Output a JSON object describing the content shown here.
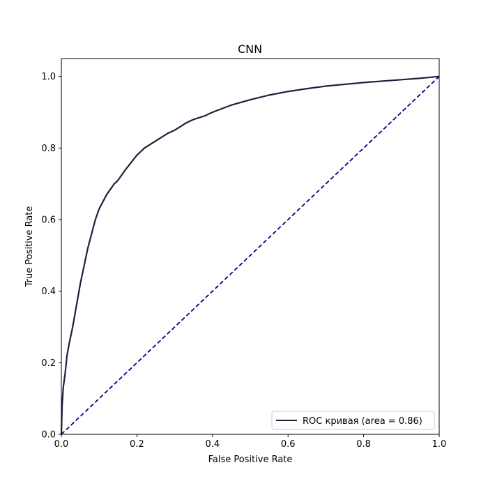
{
  "chart_data": {
    "type": "line",
    "title": "CNN",
    "xlabel": "False Positive Rate",
    "ylabel": "True Positive Rate",
    "xlim": [
      0.0,
      1.0
    ],
    "ylim": [
      0.0,
      1.05
    ],
    "xticks": [
      0.0,
      0.2,
      0.4,
      0.6,
      0.8,
      1.0
    ],
    "yticks": [
      0.0,
      0.2,
      0.4,
      0.6,
      0.8,
      1.0
    ],
    "xtick_labels": [
      "0.0",
      "0.2",
      "0.4",
      "0.6",
      "0.8",
      "1.0"
    ],
    "ytick_labels": [
      "0.0",
      "0.2",
      "0.4",
      "0.6",
      "0.8",
      "1.0"
    ],
    "grid": false,
    "legend": {
      "placement": "lower-right",
      "entries": [
        "ROC кривая (area = 0.86)"
      ]
    },
    "series": [
      {
        "name": "ROC кривая (area = 0.86)",
        "color": "#2a1a3a",
        "style": "solid",
        "x": [
          0.0,
          0.002,
          0.005,
          0.01,
          0.015,
          0.02,
          0.03,
          0.04,
          0.05,
          0.06,
          0.07,
          0.08,
          0.09,
          0.1,
          0.12,
          0.14,
          0.15,
          0.17,
          0.2,
          0.22,
          0.25,
          0.28,
          0.3,
          0.33,
          0.35,
          0.38,
          0.4,
          0.45,
          0.5,
          0.55,
          0.6,
          0.65,
          0.7,
          0.75,
          0.8,
          0.85,
          0.9,
          0.95,
          0.98,
          1.0
        ],
        "y": [
          0.0,
          0.08,
          0.13,
          0.17,
          0.22,
          0.25,
          0.3,
          0.36,
          0.42,
          0.47,
          0.52,
          0.56,
          0.6,
          0.63,
          0.67,
          0.7,
          0.71,
          0.74,
          0.78,
          0.8,
          0.82,
          0.84,
          0.85,
          0.87,
          0.88,
          0.89,
          0.9,
          0.92,
          0.935,
          0.948,
          0.958,
          0.966,
          0.973,
          0.978,
          0.983,
          0.987,
          0.991,
          0.995,
          0.998,
          1.0
        ]
      },
      {
        "name": "",
        "color": "#000080",
        "style": "dashed",
        "x": [
          0.0,
          1.0
        ],
        "y": [
          0.0,
          1.0
        ]
      }
    ]
  }
}
